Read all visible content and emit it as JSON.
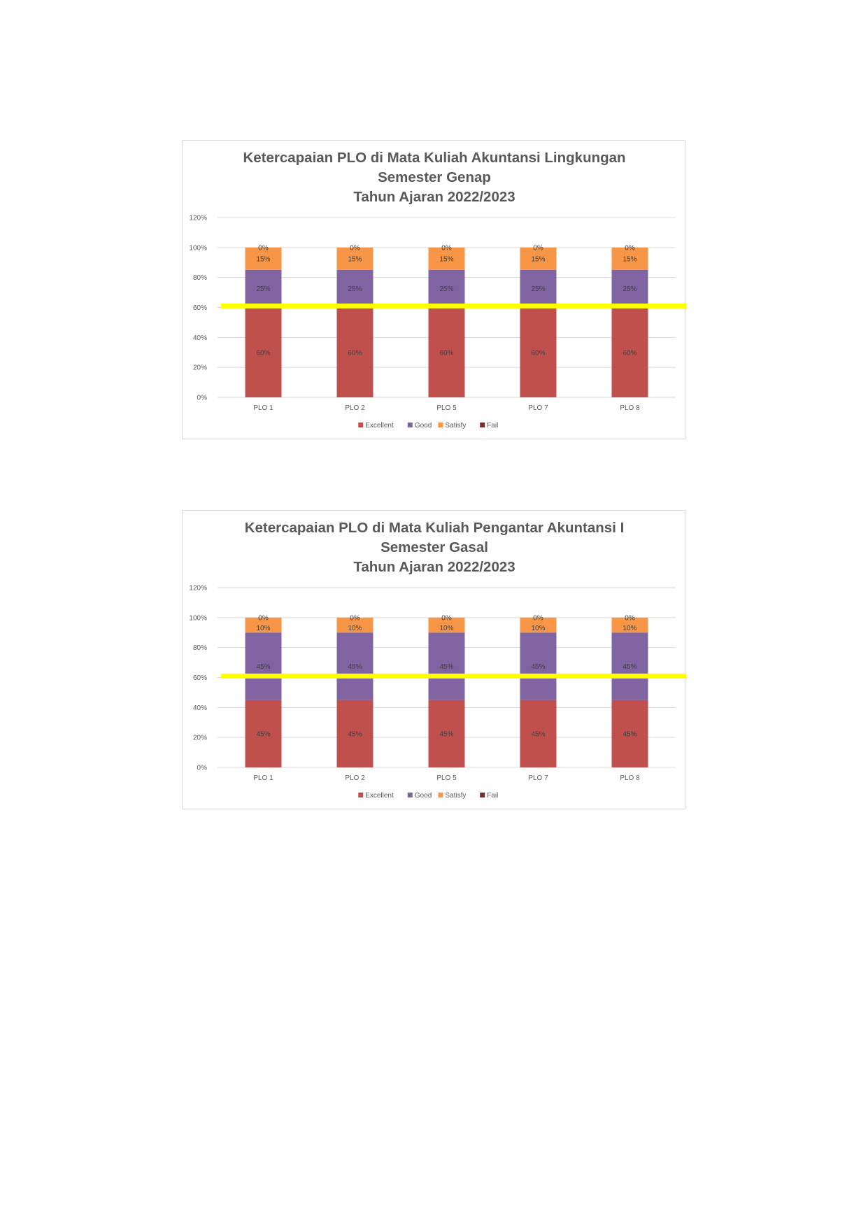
{
  "chart_data": [
    {
      "type": "bar",
      "stacked": true,
      "title": "Ketercapaian PLO di Mata Kuliah Akuntansi Lingkungan",
      "subtitle": [
        "Semester Genap",
        "Tahun Ajaran 2022/2023"
      ],
      "categories": [
        "PLO 1",
        "PLO 2",
        "PLO 5",
        "PLO 7",
        "PLO 8"
      ],
      "series": [
        {
          "name": "Excellent",
          "color": "#c0504d",
          "values": [
            60,
            60,
            60,
            60,
            60
          ]
        },
        {
          "name": "Good",
          "color": "#8064a2",
          "values": [
            25,
            25,
            25,
            25,
            25
          ]
        },
        {
          "name": "Satisfy",
          "color": "#f79646",
          "values": [
            15,
            15,
            15,
            15,
            15
          ]
        },
        {
          "name": "Fail",
          "color": "#7b2c2c",
          "values": [
            0,
            0,
            0,
            0,
            0
          ]
        }
      ],
      "ylim": [
        0,
        120
      ],
      "yticks": [
        "0%",
        "20%",
        "40%",
        "60%",
        "80%",
        "100%",
        "120%"
      ],
      "unit": "%",
      "grid": true,
      "legend": "bottom",
      "threshold": {
        "value": 61,
        "color": "#ffff00"
      }
    },
    {
      "type": "bar",
      "stacked": true,
      "title": "Ketercapaian PLO di Mata Kuliah Pengantar Akuntansi I",
      "subtitle": [
        "Semester Gasal",
        "Tahun Ajaran 2022/2023"
      ],
      "categories": [
        "PLO 1",
        "PLO 2",
        "PLO 5",
        "PLO 7",
        "PLO 8"
      ],
      "series": [
        {
          "name": "Excellent",
          "color": "#c0504d",
          "values": [
            45,
            45,
            45,
            45,
            45
          ]
        },
        {
          "name": "Good",
          "color": "#8064a2",
          "values": [
            45,
            45,
            45,
            45,
            45
          ]
        },
        {
          "name": "Satisfy",
          "color": "#f79646",
          "values": [
            10,
            10,
            10,
            10,
            10
          ]
        },
        {
          "name": "Fail",
          "color": "#7b2c2c",
          "values": [
            0,
            0,
            0,
            0,
            0
          ]
        }
      ],
      "ylim": [
        0,
        120
      ],
      "yticks": [
        "0%",
        "20%",
        "40%",
        "60%",
        "80%",
        "100%",
        "120%"
      ],
      "unit": "%",
      "grid": true,
      "legend": "bottom",
      "threshold": {
        "value": 61,
        "color": "#ffff00"
      }
    }
  ]
}
